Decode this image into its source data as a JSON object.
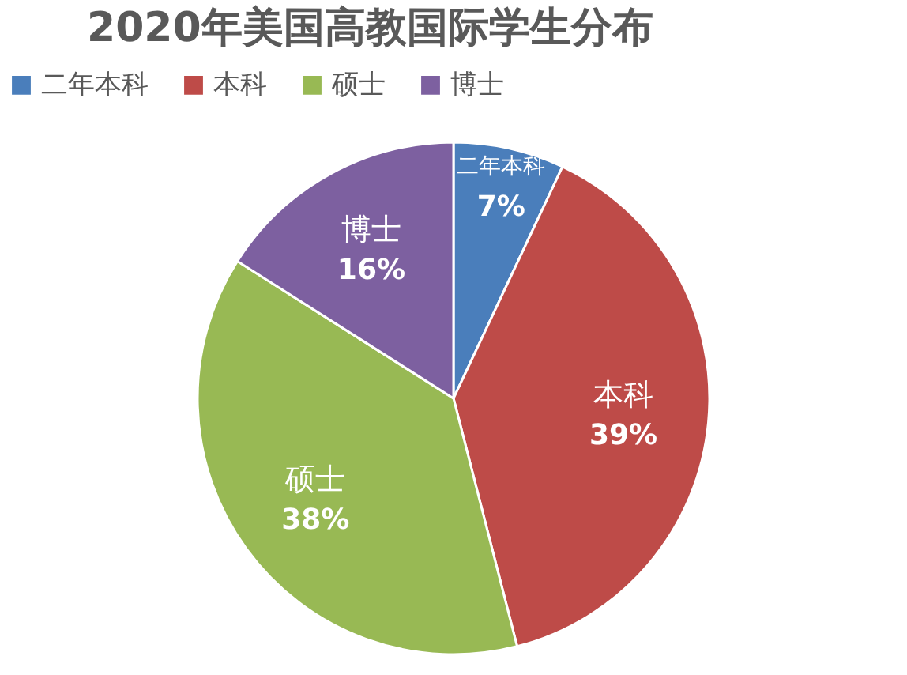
{
  "chart_data": {
    "type": "pie",
    "title": "2020年美国高教国际学生分布",
    "categories": [
      "二年本科",
      "本科",
      "硕士",
      "博士"
    ],
    "values": [
      7,
      39,
      38,
      16
    ],
    "value_labels": [
      "7%",
      "39%",
      "38%",
      "16%"
    ],
    "colors": [
      "#4a7ebb",
      "#be4b48",
      "#98b954",
      "#7d60a0"
    ],
    "legend": "top"
  }
}
